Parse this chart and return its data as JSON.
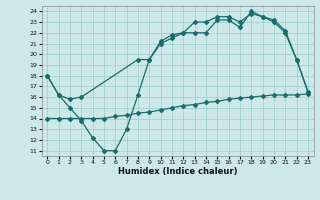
{
  "title": "",
  "xlabel": "Humidex (Indice chaleur)",
  "bg_color": "#cce8e8",
  "grid_color": "#99cccc",
  "line_color": "#1a6b6b",
  "xlim": [
    -0.5,
    23.5
  ],
  "ylim": [
    10.5,
    24.5
  ],
  "xticks": [
    0,
    1,
    2,
    3,
    4,
    5,
    6,
    7,
    8,
    9,
    10,
    11,
    12,
    13,
    14,
    15,
    16,
    17,
    18,
    19,
    20,
    21,
    22,
    23
  ],
  "yticks": [
    11,
    12,
    13,
    14,
    15,
    16,
    17,
    18,
    19,
    20,
    21,
    22,
    23,
    24
  ],
  "line1_x": [
    0,
    1,
    2,
    3,
    4,
    5,
    6,
    7,
    8,
    9,
    10,
    11,
    12,
    13,
    14,
    15,
    16,
    17,
    18,
    19,
    20,
    21,
    22,
    23
  ],
  "line1_y": [
    18.0,
    16.2,
    15.0,
    13.8,
    12.2,
    11.0,
    11.0,
    13.0,
    16.2,
    19.5,
    21.0,
    21.5,
    22.0,
    22.0,
    22.0,
    23.2,
    23.2,
    22.5,
    24.0,
    23.5,
    23.0,
    22.0,
    19.5,
    16.5
  ],
  "line2_x": [
    0,
    1,
    2,
    3,
    8,
    9,
    10,
    11,
    12,
    13,
    14,
    15,
    16,
    17,
    18,
    19,
    20,
    21,
    22,
    23
  ],
  "line2_y": [
    18.0,
    16.2,
    15.8,
    16.0,
    19.5,
    19.5,
    21.2,
    21.8,
    22.0,
    23.0,
    23.0,
    23.5,
    23.5,
    23.0,
    23.8,
    23.5,
    23.2,
    22.2,
    19.5,
    16.5
  ],
  "line3_x": [
    0,
    1,
    2,
    3,
    4,
    5,
    6,
    7,
    8,
    9,
    10,
    11,
    12,
    13,
    14,
    15,
    16,
    17,
    18,
    19,
    20,
    21,
    22,
    23
  ],
  "line3_y": [
    14.0,
    14.0,
    14.0,
    14.0,
    14.0,
    14.0,
    14.2,
    14.3,
    14.5,
    14.6,
    14.8,
    15.0,
    15.2,
    15.3,
    15.5,
    15.6,
    15.8,
    15.9,
    16.0,
    16.1,
    16.2,
    16.2,
    16.2,
    16.3
  ]
}
